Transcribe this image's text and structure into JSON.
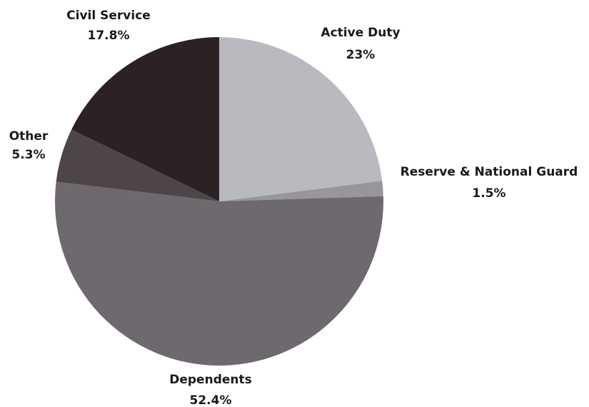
{
  "chart_data": {
    "type": "pie",
    "title": "",
    "slices": [
      {
        "label": "Active Duty",
        "value_label": "23%",
        "value": 23.0,
        "color": "#b9bac0"
      },
      {
        "label": "Reserve & National Guard",
        "value_label": "1.5%",
        "value": 1.5,
        "color": "#97969c"
      },
      {
        "label": "Dependents",
        "value_label": "52.4%",
        "value": 52.4,
        "color": "#6e696f"
      },
      {
        "label": "Other",
        "value_label": "5.3%",
        "value": 5.3,
        "color": "#4e4548"
      },
      {
        "label": "Civil Service",
        "value_label": "17.8%",
        "value": 17.8,
        "color": "#2c2224"
      }
    ],
    "start_angle": "12 o'clock",
    "direction": "clockwise",
    "legend": "none",
    "labels": "outside slices"
  }
}
